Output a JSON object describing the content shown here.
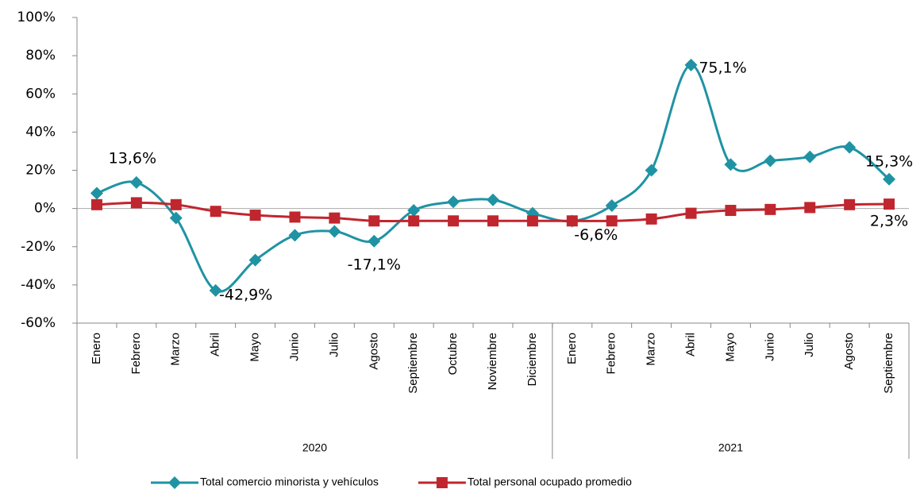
{
  "chart_data": {
    "type": "line",
    "groups": [
      {
        "label": "2020",
        "categories": [
          "Enero",
          "Febrero",
          "Marzo",
          "Abril",
          "Mayo",
          "Junio",
          "Julio",
          "Agosto",
          "Septiembre",
          "Octubre",
          "Noviembre",
          "Diciembre"
        ]
      },
      {
        "label": "2021",
        "categories": [
          "Enero",
          "Febrero",
          "Marzo",
          "Abril",
          "Mayo",
          "Junio",
          "Julio",
          "Agosto",
          "Septiembre"
        ]
      }
    ],
    "series": [
      {
        "name": "Total comercio minorista y vehículos",
        "color": "#1f93a3",
        "marker": "diamond",
        "values": [
          8,
          13.6,
          -5,
          -42.9,
          -27,
          -14,
          -12,
          -17.1,
          -1,
          3.5,
          4.5,
          -2.5,
          -6.6,
          1.5,
          20,
          75.1,
          23,
          25,
          27,
          32,
          15.3
        ],
        "value_labels": [
          null,
          "13,6%",
          null,
          "-42,9%",
          null,
          null,
          null,
          "-17,1%",
          null,
          null,
          null,
          null,
          "-6,6%",
          null,
          null,
          "75,1%",
          null,
          null,
          null,
          null,
          "15,3%"
        ]
      },
      {
        "name": "Total personal ocupado promedio",
        "color": "#c0262e",
        "marker": "square",
        "values": [
          2,
          3,
          2,
          -1.5,
          -3.5,
          -4.5,
          -5,
          -6.5,
          -6.5,
          -6.5,
          -6.5,
          -6.5,
          -6.5,
          -6.5,
          -5.5,
          -2.5,
          -1,
          -0.5,
          0.5,
          2,
          2.3
        ],
        "value_labels": [
          null,
          null,
          null,
          null,
          null,
          null,
          null,
          null,
          null,
          null,
          null,
          null,
          null,
          null,
          null,
          null,
          null,
          null,
          null,
          null,
          "2,3%"
        ]
      }
    ],
    "ylim": [
      -60,
      100
    ],
    "yticks": [
      {
        "value": -60,
        "label": "-60%"
      },
      {
        "value": -40,
        "label": "-40%"
      },
      {
        "value": -20,
        "label": "-20%"
      },
      {
        "value": 0,
        "label": "0%"
      },
      {
        "value": 20,
        "label": "20%"
      },
      {
        "value": 40,
        "label": "40%"
      },
      {
        "value": 60,
        "label": "60%"
      },
      {
        "value": 80,
        "label": "80%"
      },
      {
        "value": 100,
        "label": "100%"
      }
    ],
    "legend": "bottom"
  }
}
